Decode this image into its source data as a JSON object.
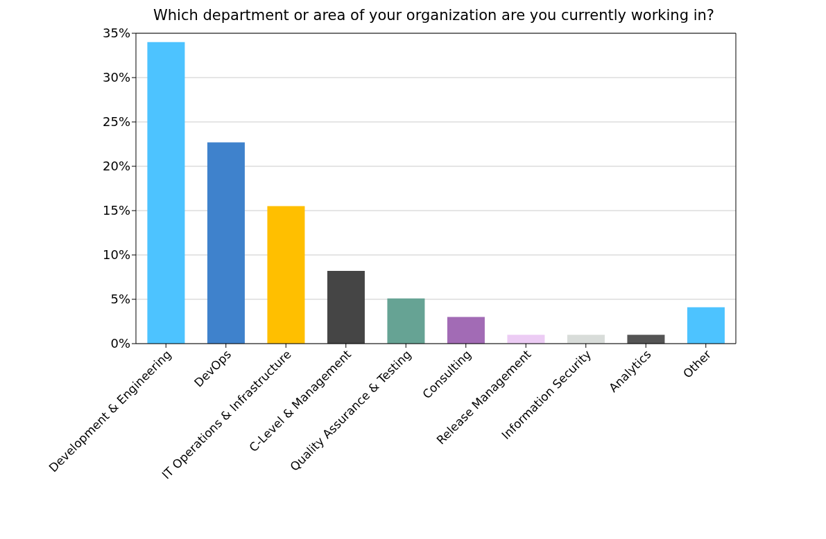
{
  "chart_data": {
    "type": "bar",
    "title": "Which department or area of your organization are you currently working in?",
    "categories": [
      "Development & Engineering",
      "DevOps",
      "IT Operations & Infrastructure",
      "C-Level & Management",
      "Quality Assurance & Testing",
      "Consulting",
      "Release Management",
      "Information Security",
      "Analytics",
      "Other"
    ],
    "values": [
      34,
      22.7,
      15.5,
      8.2,
      5.1,
      3.0,
      1.0,
      1.0,
      1.0,
      4.1
    ],
    "colors": [
      "#4dc3ff",
      "#3f82cc",
      "#ffbf00",
      "#454545",
      "#66a394",
      "#a26bb5",
      "#ecccf4",
      "#d8dcd9",
      "#545454",
      "#4dc3ff"
    ],
    "ylim": [
      0,
      35
    ],
    "yticks": [
      {
        "value": 0,
        "label": "0%"
      },
      {
        "value": 5,
        "label": "5%"
      },
      {
        "value": 10,
        "label": "10%"
      },
      {
        "value": 15,
        "label": "15%"
      },
      {
        "value": 20,
        "label": "20%"
      },
      {
        "value": 25,
        "label": "25%"
      },
      {
        "value": 30,
        "label": "30%"
      },
      {
        "value": 35,
        "label": "35%"
      }
    ],
    "grid": "y"
  }
}
